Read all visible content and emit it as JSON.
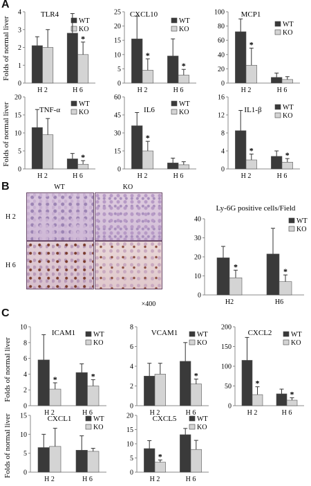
{
  "panel_letters": [
    "A",
    "B",
    "C"
  ],
  "ylabel": "Folds of normal liver",
  "legend": {
    "wt": "WT",
    "ko": "KO"
  },
  "significance_mark": "*",
  "colors": {
    "wt": "#3a3a3a",
    "ko": "#d4d4d4",
    "ko_light": "#c8c8c8"
  },
  "microscopy": {
    "col_labels": [
      "WT",
      "KO"
    ],
    "row_labels": [
      "H 2",
      "H 6"
    ],
    "magnification": "×400"
  },
  "chart_data": [
    {
      "id": "A1",
      "type": "bar",
      "title": "TLR4",
      "categories": [
        "H 2",
        "H 6"
      ],
      "ylim": [
        0,
        4
      ],
      "yticks": [
        0,
        1,
        2,
        3,
        4
      ],
      "series": [
        {
          "name": "WT",
          "values": [
            2.1,
            2.8
          ],
          "errors": [
            0.5,
            1.1
          ]
        },
        {
          "name": "KO",
          "values": [
            2.0,
            1.6
          ],
          "errors": [
            1.0,
            0.7
          ]
        }
      ],
      "significance": [
        [
          1,
          1
        ]
      ]
    },
    {
      "id": "A2",
      "type": "bar",
      "title": "CXCL10",
      "categories": [
        "H 2",
        "H 6"
      ],
      "ylim": [
        0,
        25
      ],
      "yticks": [
        0,
        5,
        10,
        15,
        20,
        25
      ],
      "series": [
        {
          "name": "WT",
          "values": [
            15.5,
            9.5
          ],
          "errors": [
            8.0,
            6.0
          ]
        },
        {
          "name": "KO",
          "values": [
            4.5,
            2.8
          ],
          "errors": [
            4.0,
            2.0
          ]
        }
      ],
      "significance": [
        [
          0,
          1
        ],
        [
          1,
          1
        ]
      ]
    },
    {
      "id": "A3",
      "type": "bar",
      "title": "MCP1",
      "categories": [
        "H 2",
        "H 6"
      ],
      "ylim": [
        0,
        100
      ],
      "yticks": [
        0,
        20,
        40,
        60,
        80,
        100
      ],
      "series": [
        {
          "name": "WT",
          "values": [
            72,
            8
          ],
          "errors": [
            18,
            6
          ]
        },
        {
          "name": "KO",
          "values": [
            25,
            5
          ],
          "errors": [
            24,
            4
          ]
        }
      ],
      "significance": [
        [
          0,
          1
        ]
      ]
    },
    {
      "id": "A4",
      "type": "bar",
      "title": "TNF-α",
      "categories": [
        "H 2",
        "H 6"
      ],
      "ylim": [
        0,
        20
      ],
      "yticks": [
        0,
        5,
        10,
        15,
        20
      ],
      "series": [
        {
          "name": "WT",
          "values": [
            11.5,
            2.8
          ],
          "errors": [
            5.0,
            1.5
          ]
        },
        {
          "name": "KO",
          "values": [
            9.5,
            1.3
          ],
          "errors": [
            4.5,
            1.0
          ]
        }
      ],
      "significance": [
        [
          1,
          1
        ]
      ]
    },
    {
      "id": "A5",
      "type": "bar",
      "title": "IL6",
      "categories": [
        "H 2",
        "H 6"
      ],
      "ylim": [
        0,
        60
      ],
      "yticks": [
        0,
        15,
        30,
        45,
        60
      ],
      "series": [
        {
          "name": "WT",
          "values": [
            36,
            5
          ],
          "errors": [
            11,
            4
          ]
        },
        {
          "name": "KO",
          "values": [
            15,
            3.5
          ],
          "errors": [
            8,
            2.5
          ]
        }
      ],
      "significance": [
        [
          0,
          1
        ]
      ]
    },
    {
      "id": "A6",
      "type": "bar",
      "title": "IL1-β",
      "categories": [
        "H 2",
        "H 6"
      ],
      "ylim": [
        0,
        16
      ],
      "yticks": [
        0,
        4,
        8,
        12,
        16
      ],
      "series": [
        {
          "name": "WT",
          "values": [
            8.5,
            2.8
          ],
          "errors": [
            4.5,
            1.2
          ]
        },
        {
          "name": "KO",
          "values": [
            2.0,
            1.5
          ],
          "errors": [
            1.3,
            0.8
          ]
        }
      ],
      "significance": [
        [
          0,
          1
        ],
        [
          1,
          1
        ]
      ]
    },
    {
      "id": "B",
      "type": "bar",
      "title": "Ly-6G positive cells/Field",
      "categories": [
        "H2",
        "H6"
      ],
      "ylim": [
        0,
        40
      ],
      "yticks": [
        0,
        10,
        20,
        30,
        40
      ],
      "series": [
        {
          "name": "WT",
          "values": [
            19.5,
            21.5
          ],
          "errors": [
            6.0,
            13.5
          ]
        },
        {
          "name": "KO",
          "values": [
            9.0,
            7.0
          ],
          "errors": [
            4.0,
            3.5
          ]
        }
      ],
      "significance": [
        [
          0,
          1
        ],
        [
          1,
          1
        ]
      ]
    },
    {
      "id": "C1",
      "type": "bar",
      "title": "ICAM1",
      "categories": [
        "H 2",
        "H 6"
      ],
      "ylim": [
        0,
        10
      ],
      "yticks": [
        0,
        2,
        4,
        6,
        8,
        10
      ],
      "series": [
        {
          "name": "WT",
          "values": [
            5.8,
            4.2
          ],
          "errors": [
            3.2,
            1.1
          ]
        },
        {
          "name": "KO",
          "values": [
            2.1,
            2.5
          ],
          "errors": [
            0.8,
            0.8
          ]
        }
      ],
      "significance": [
        [
          0,
          1
        ],
        [
          1,
          1
        ]
      ]
    },
    {
      "id": "C2",
      "type": "bar",
      "title": "VCAM1",
      "categories": [
        "H 2",
        "H 6"
      ],
      "ylim": [
        0,
        8
      ],
      "yticks": [
        0,
        2,
        4,
        6,
        8
      ],
      "series": [
        {
          "name": "WT",
          "values": [
            3.0,
            4.5
          ],
          "errors": [
            1.3,
            1.9
          ]
        },
        {
          "name": "KO",
          "values": [
            3.2,
            2.2
          ],
          "errors": [
            1.1,
            0.5
          ]
        }
      ],
      "significance": [
        [
          1,
          1
        ]
      ]
    },
    {
      "id": "C3",
      "type": "bar",
      "title": "CXCL2",
      "categories": [
        "H 2",
        "H 6"
      ],
      "ylim": [
        0,
        200
      ],
      "yticks": [
        0,
        50,
        100,
        150,
        200
      ],
      "series": [
        {
          "name": "WT",
          "values": [
            115,
            30
          ],
          "errors": [
            58,
            12
          ]
        },
        {
          "name": "KO",
          "values": [
            28,
            14
          ],
          "errors": [
            20,
            6
          ]
        }
      ],
      "significance": [
        [
          0,
          1
        ],
        [
          1,
          1
        ]
      ]
    },
    {
      "id": "C4",
      "type": "bar",
      "title": "CXCL1",
      "categories": [
        "H 2",
        "H 6"
      ],
      "ylim": [
        0,
        15
      ],
      "yticks": [
        0,
        5,
        10,
        15
      ],
      "series": [
        {
          "name": "WT",
          "values": [
            6.5,
            5.8
          ],
          "errors": [
            3.5,
            3.8
          ]
        },
        {
          "name": "KO",
          "values": [
            6.8,
            5.5
          ],
          "errors": [
            4.8,
            0.8
          ]
        }
      ],
      "significance": []
    },
    {
      "id": "C5",
      "type": "bar",
      "title": "CXCL5",
      "categories": [
        "H 2",
        "H 6"
      ],
      "ylim": [
        0,
        20
      ],
      "yticks": [
        0,
        5,
        10,
        15,
        20
      ],
      "series": [
        {
          "name": "WT",
          "values": [
            8.3,
            13.2
          ],
          "errors": [
            2.8,
            2.2
          ]
        },
        {
          "name": "KO",
          "values": [
            3.5,
            8.0
          ],
          "errors": [
            0.8,
            3.2
          ]
        }
      ],
      "significance": [
        [
          0,
          1
        ]
      ]
    }
  ]
}
